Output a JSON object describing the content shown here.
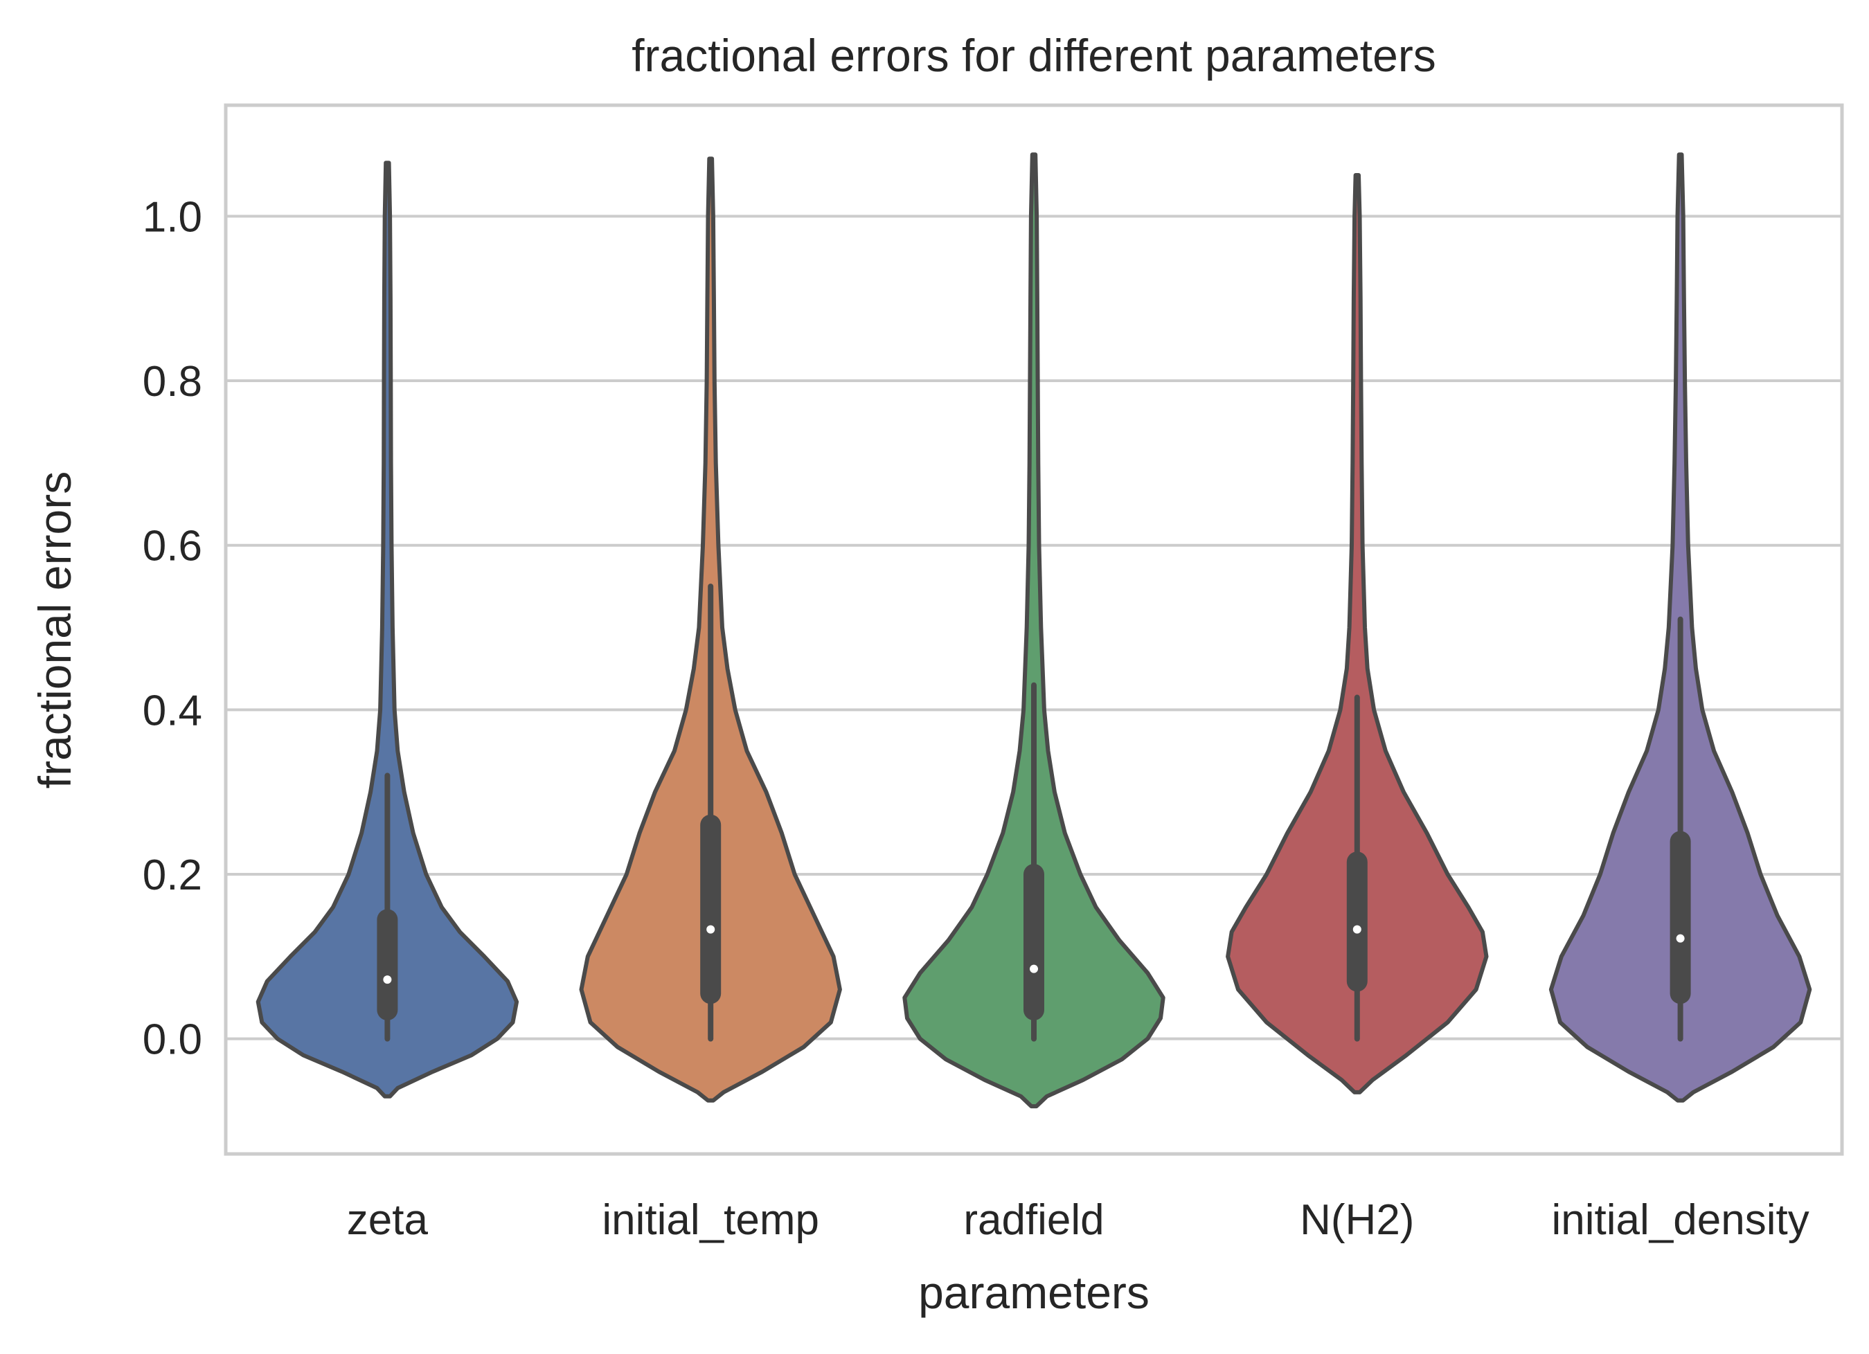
{
  "chart_data": {
    "type": "violin",
    "title": "fractional errors for different parameters",
    "xlabel": "parameters",
    "ylabel": "fractional errors",
    "ylim": [
      -0.14,
      1.135
    ],
    "yticks": [
      0.0,
      0.2,
      0.4,
      0.6,
      0.8,
      1.0
    ],
    "ytick_labels": [
      "0.0",
      "0.2",
      "0.4",
      "0.6",
      "0.8",
      "1.0"
    ],
    "grid": "horizontal",
    "categories": [
      "zeta",
      "initial_temp",
      "radfield",
      "N(H2)",
      "initial_density"
    ],
    "series": [
      {
        "category": "zeta",
        "color": "#5875a4",
        "min": 0.0,
        "q1": 0.035,
        "median": 0.072,
        "q3": 0.145,
        "whisker_high": 0.32,
        "kde_extent": [
          -0.07,
          1.065
        ],
        "profile": [
          [
            -0.07,
            0.02
          ],
          [
            -0.06,
            0.08
          ],
          [
            -0.04,
            0.35
          ],
          [
            -0.02,
            0.65
          ],
          [
            0.0,
            0.85
          ],
          [
            0.02,
            0.97
          ],
          [
            0.045,
            1.0
          ],
          [
            0.07,
            0.93
          ],
          [
            0.1,
            0.75
          ],
          [
            0.13,
            0.56
          ],
          [
            0.16,
            0.42
          ],
          [
            0.2,
            0.3
          ],
          [
            0.25,
            0.2
          ],
          [
            0.3,
            0.13
          ],
          [
            0.35,
            0.08
          ],
          [
            0.4,
            0.055
          ],
          [
            0.5,
            0.04
          ],
          [
            0.6,
            0.032
          ],
          [
            0.7,
            0.028
          ],
          [
            0.8,
            0.026
          ],
          [
            0.9,
            0.024
          ],
          [
            1.0,
            0.02
          ],
          [
            1.065,
            0.012
          ]
        ]
      },
      {
        "category": "initial_temp",
        "color": "#cc8963",
        "min": 0.0,
        "q1": 0.055,
        "median": 0.133,
        "q3": 0.26,
        "whisker_high": 0.55,
        "kde_extent": [
          -0.075,
          1.07
        ],
        "profile": [
          [
            -0.075,
            0.02
          ],
          [
            -0.065,
            0.1
          ],
          [
            -0.04,
            0.4
          ],
          [
            -0.01,
            0.72
          ],
          [
            0.02,
            0.93
          ],
          [
            0.06,
            1.0
          ],
          [
            0.1,
            0.95
          ],
          [
            0.15,
            0.8
          ],
          [
            0.2,
            0.65
          ],
          [
            0.25,
            0.55
          ],
          [
            0.3,
            0.43
          ],
          [
            0.35,
            0.28
          ],
          [
            0.4,
            0.19
          ],
          [
            0.45,
            0.13
          ],
          [
            0.5,
            0.09
          ],
          [
            0.6,
            0.06
          ],
          [
            0.7,
            0.04
          ],
          [
            0.8,
            0.03
          ],
          [
            0.9,
            0.025
          ],
          [
            1.0,
            0.02
          ],
          [
            1.07,
            0.01
          ]
        ]
      },
      {
        "category": "radfield",
        "color": "#5f9e6e",
        "min": 0.0,
        "q1": 0.035,
        "median": 0.085,
        "q3": 0.2,
        "whisker_high": 0.43,
        "kde_extent": [
          -0.082,
          1.075
        ],
        "profile": [
          [
            -0.082,
            0.02
          ],
          [
            -0.07,
            0.1
          ],
          [
            -0.05,
            0.38
          ],
          [
            -0.025,
            0.68
          ],
          [
            0.0,
            0.88
          ],
          [
            0.025,
            0.98
          ],
          [
            0.05,
            1.0
          ],
          [
            0.08,
            0.88
          ],
          [
            0.12,
            0.66
          ],
          [
            0.16,
            0.48
          ],
          [
            0.2,
            0.36
          ],
          [
            0.25,
            0.24
          ],
          [
            0.3,
            0.16
          ],
          [
            0.35,
            0.11
          ],
          [
            0.4,
            0.08
          ],
          [
            0.5,
            0.055
          ],
          [
            0.6,
            0.04
          ],
          [
            0.7,
            0.034
          ],
          [
            0.8,
            0.03
          ],
          [
            0.9,
            0.026
          ],
          [
            1.0,
            0.022
          ],
          [
            1.075,
            0.012
          ]
        ]
      },
      {
        "category": "N(H2)",
        "color": "#b55d60",
        "min": 0.0,
        "q1": 0.07,
        "median": 0.133,
        "q3": 0.215,
        "whisker_high": 0.415,
        "kde_extent": [
          -0.065,
          1.05
        ],
        "profile": [
          [
            -0.065,
            0.02
          ],
          [
            -0.05,
            0.12
          ],
          [
            -0.02,
            0.38
          ],
          [
            0.02,
            0.7
          ],
          [
            0.06,
            0.92
          ],
          [
            0.1,
            1.0
          ],
          [
            0.13,
            0.97
          ],
          [
            0.16,
            0.86
          ],
          [
            0.2,
            0.7
          ],
          [
            0.25,
            0.54
          ],
          [
            0.3,
            0.36
          ],
          [
            0.35,
            0.22
          ],
          [
            0.4,
            0.13
          ],
          [
            0.45,
            0.08
          ],
          [
            0.5,
            0.06
          ],
          [
            0.6,
            0.042
          ],
          [
            0.7,
            0.035
          ],
          [
            0.8,
            0.03
          ],
          [
            0.9,
            0.026
          ],
          [
            1.0,
            0.02
          ],
          [
            1.05,
            0.012
          ]
        ]
      },
      {
        "category": "initial_density",
        "color": "#857aab",
        "min": 0.0,
        "q1": 0.055,
        "median": 0.122,
        "q3": 0.24,
        "whisker_high": 0.51,
        "kde_extent": [
          -0.075,
          1.075
        ],
        "profile": [
          [
            -0.075,
            0.02
          ],
          [
            -0.065,
            0.1
          ],
          [
            -0.04,
            0.4
          ],
          [
            -0.01,
            0.72
          ],
          [
            0.02,
            0.93
          ],
          [
            0.06,
            1.0
          ],
          [
            0.1,
            0.92
          ],
          [
            0.15,
            0.75
          ],
          [
            0.2,
            0.62
          ],
          [
            0.25,
            0.52
          ],
          [
            0.3,
            0.4
          ],
          [
            0.35,
            0.26
          ],
          [
            0.4,
            0.17
          ],
          [
            0.45,
            0.12
          ],
          [
            0.5,
            0.09
          ],
          [
            0.6,
            0.06
          ],
          [
            0.7,
            0.045
          ],
          [
            0.8,
            0.035
          ],
          [
            0.9,
            0.028
          ],
          [
            1.0,
            0.022
          ],
          [
            1.075,
            0.01
          ]
        ]
      }
    ]
  }
}
